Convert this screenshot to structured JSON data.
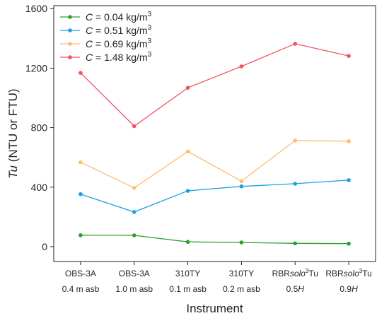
{
  "chart_data": {
    "type": "line",
    "xlabel": "Instrument",
    "ylabel": "Tu (NTU or FTU)",
    "ylabel_parts": [
      {
        "text": "Tu",
        "italic": true
      },
      {
        "text": " (NTU or FTU)",
        "italic": false
      }
    ],
    "ylim": [
      -100,
      1620
    ],
    "yticks": [
      0,
      400,
      800,
      1200,
      1600
    ],
    "grid": false,
    "legend_position": "top-left",
    "categories": [
      "OBS-3A 0.4 m asb",
      "OBS-3A 1.0 m asb",
      "310TY 0.1 m asb",
      "310TY 0.2 m asb",
      "RBRsolo3Tu 0.5H",
      "RBRsolo3Tu 0.9H"
    ],
    "category_labels": [
      {
        "line1": [
          {
            "text": "OBS-3A"
          }
        ],
        "line2": [
          {
            "text": "0.4 m asb"
          }
        ]
      },
      {
        "line1": [
          {
            "text": "OBS-3A"
          }
        ],
        "line2": [
          {
            "text": "1.0 m asb"
          }
        ]
      },
      {
        "line1": [
          {
            "text": "310TY"
          }
        ],
        "line2": [
          {
            "text": "0.1 m asb"
          }
        ]
      },
      {
        "line1": [
          {
            "text": "310TY"
          }
        ],
        "line2": [
          {
            "text": "0.2 m asb"
          }
        ]
      },
      {
        "line1": [
          {
            "text": "RBR"
          },
          {
            "text": "solo",
            "italic": true
          },
          {
            "text": "3",
            "sup": true
          },
          {
            "text": "Tu"
          }
        ],
        "line2": [
          {
            "text": "0.5"
          },
          {
            "text": "H",
            "italic": true
          }
        ]
      },
      {
        "line1": [
          {
            "text": "RBR"
          },
          {
            "text": "solo",
            "italic": true
          },
          {
            "text": "3",
            "sup": true
          },
          {
            "text": "Tu"
          }
        ],
        "line2": [
          {
            "text": "0.9"
          },
          {
            "text": "H",
            "italic": true
          }
        ]
      }
    ],
    "series": [
      {
        "name": "C = 0.04 kg/m3",
        "name_parts": [
          {
            "text": "C",
            "italic": true
          },
          {
            "text": " = 0.04 kg/m"
          },
          {
            "text": "3",
            "sup": true
          }
        ],
        "color": "#2ca02c",
        "values": [
          77,
          76,
          32,
          28,
          22,
          20
        ]
      },
      {
        "name": "C = 0.51 kg/m3",
        "name_parts": [
          {
            "text": "C",
            "italic": true
          },
          {
            "text": " = 0.51 kg/m"
          },
          {
            "text": "3",
            "sup": true
          }
        ],
        "color": "#1ba1e2",
        "values": [
          353,
          233,
          375,
          405,
          423,
          447
        ]
      },
      {
        "name": "C = 0.69 kg/m3",
        "name_parts": [
          {
            "text": "C",
            "italic": true
          },
          {
            "text": " = 0.69 kg/m"
          },
          {
            "text": "3",
            "sup": true
          }
        ],
        "color": "#fbbf6e",
        "values": [
          567,
          395,
          640,
          440,
          713,
          709
        ]
      },
      {
        "name": "C = 1.48 kg/m3",
        "name_parts": [
          {
            "text": "C",
            "italic": true
          },
          {
            "text": " = 1.48 kg/m"
          },
          {
            "text": "3",
            "sup": true
          }
        ],
        "color": "#f0525f",
        "values": [
          1168,
          810,
          1068,
          1212,
          1364,
          1282
        ]
      }
    ]
  }
}
